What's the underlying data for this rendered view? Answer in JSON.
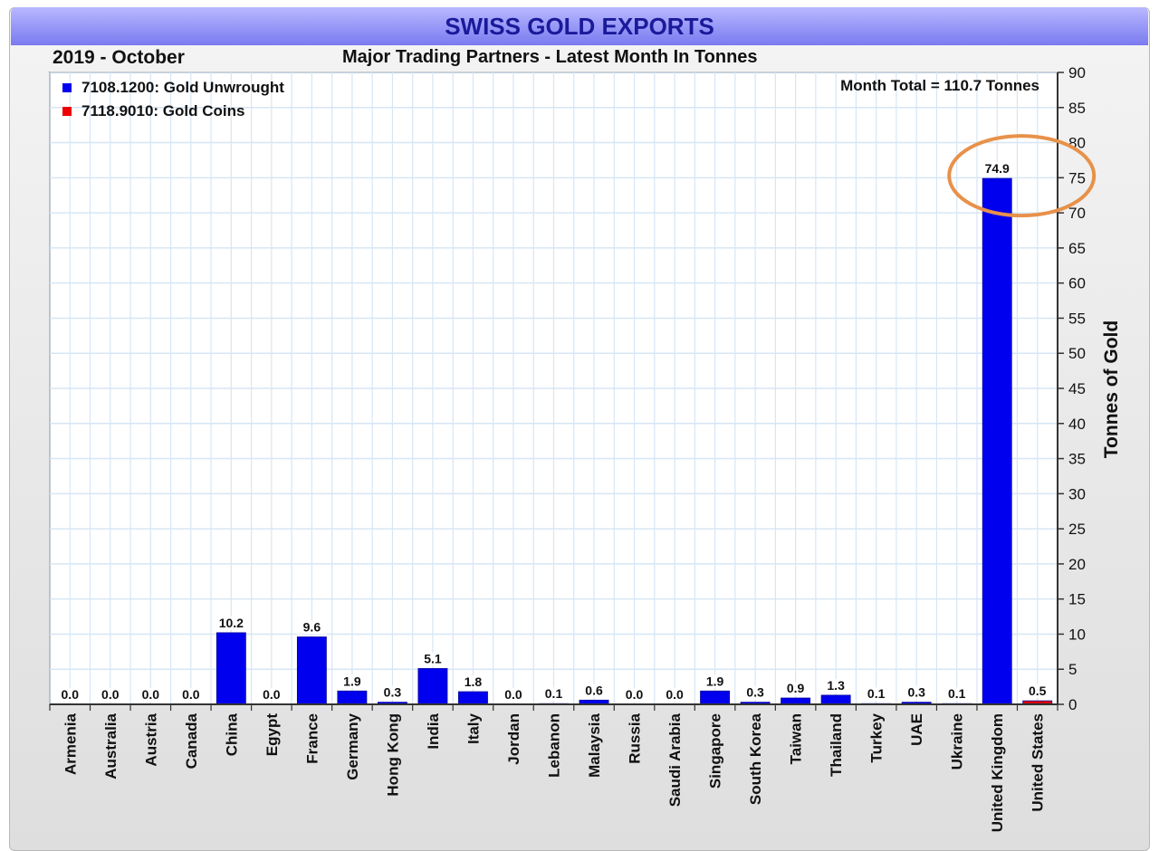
{
  "title": "SWISS GOLD EXPORTS",
  "period": "2019 - October",
  "subtitle": "Major Trading Partners - Latest Month In Tonnes",
  "month_total": "Month Total = 110.7 Tonnes",
  "colors": {
    "unwrought": "#0000ee",
    "coins": "#ee0000",
    "highlight": "#e8914a"
  },
  "chart_data": {
    "type": "bar",
    "title": "SWISS GOLD EXPORTS",
    "subtitle": "Major Trading Partners - Latest Month In Tonnes",
    "ylabel": "Tonnes of Gold",
    "xlabel": "",
    "ylim": [
      0,
      90
    ],
    "yticks": [
      0,
      5,
      10,
      15,
      20,
      25,
      30,
      35,
      40,
      45,
      50,
      55,
      60,
      65,
      70,
      75,
      80,
      85,
      90
    ],
    "grid": true,
    "legend_position": "top-left",
    "categories": [
      "Armenia",
      "Australia",
      "Austria",
      "Canada",
      "China",
      "Egypt",
      "France",
      "Germany",
      "Hong Kong",
      "India",
      "Italy",
      "Jordan",
      "Lebanon",
      "Malaysia",
      "Russia",
      "Saudi Arabia",
      "Singapore",
      "South Korea",
      "Taiwan",
      "Thailand",
      "Turkey",
      "UAE",
      "Ukraine",
      "United Kingdom",
      "United States"
    ],
    "value_labels": [
      "0.0",
      "0.0",
      "0.0",
      "0.0",
      "10.2",
      "0.0",
      "9.6",
      "1.9",
      "0.3",
      "5.1",
      "1.8",
      "0.0",
      "0.1",
      "0.6",
      "0.0",
      "0.0",
      "1.9",
      "0.3",
      "0.9",
      "1.3",
      "0.1",
      "0.3",
      "0.1",
      "74.9",
      "0.5"
    ],
    "series": [
      {
        "name": "7108.1200: Gold Unwrought",
        "color": "#0000ee",
        "values": [
          0,
          0,
          0,
          0,
          10.2,
          0,
          9.6,
          1.9,
          0.3,
          5.1,
          1.8,
          0,
          0.1,
          0.6,
          0,
          0,
          1.9,
          0.3,
          0.9,
          1.3,
          0.1,
          0.3,
          0.1,
          74.9,
          0.1
        ]
      },
      {
        "name": "7118.9010: Gold Coins",
        "color": "#ee0000",
        "values": [
          0,
          0,
          0,
          0,
          0,
          0,
          0,
          0,
          0,
          0,
          0,
          0,
          0,
          0,
          0,
          0,
          0,
          0,
          0,
          0,
          0,
          0,
          0,
          0,
          0.4
        ]
      }
    ],
    "annotations": [
      {
        "category": "United Kingdom",
        "shape": "ellipse"
      }
    ]
  }
}
